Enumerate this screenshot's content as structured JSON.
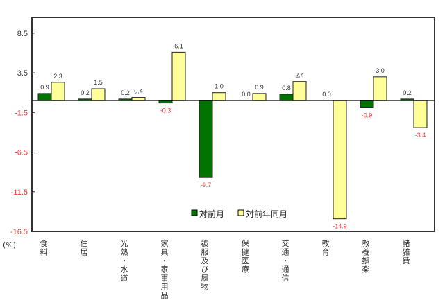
{
  "chart_data": {
    "type": "bar",
    "title": "",
    "xlabel": "",
    "ylabel": "(%)",
    "ylim": [
      -16.5,
      10.5
    ],
    "yticks": [
      8.5,
      3.5,
      -1.5,
      -6.5,
      -11.5,
      -16.5
    ],
    "ytick_labels": [
      "8.5",
      "3.5",
      "-1.5",
      "-6.5",
      "-11.5",
      "-16.5"
    ],
    "grid": false,
    "legend_position": "bottom-center-inside",
    "categories": [
      "食料",
      "住居",
      "光熱・水道",
      "家具・家事用品",
      "被服及び履物",
      "保健医療",
      "交通・通信",
      "教育",
      "教養娯楽",
      "諸雑費"
    ],
    "series": [
      {
        "name": "対前月",
        "color": "#007300",
        "values": [
          0.9,
          0.2,
          0.2,
          -0.3,
          -9.7,
          0.0,
          0.8,
          0.0,
          -0.9,
          0.2
        ],
        "labels": [
          "0.9",
          "0.2",
          "0.2",
          "-0.3",
          "-9.7",
          "0.0",
          "0.8",
          "0.0",
          "-0.9",
          "0.2"
        ]
      },
      {
        "name": "対前年同月",
        "color": "#ffff99",
        "values": [
          2.3,
          1.5,
          0.4,
          6.1,
          1.0,
          0.9,
          2.4,
          -14.9,
          3.0,
          -3.4
        ],
        "labels": [
          "2.3",
          "1.5",
          "0.4",
          "6.1",
          "1.0",
          "0.9",
          "2.4",
          "-14.9",
          "3.0",
          "-3.4"
        ]
      }
    ],
    "positive_label_color": "#333333",
    "negative_label_color": "#ff3333",
    "negative_tick_color": "#ff3333"
  }
}
